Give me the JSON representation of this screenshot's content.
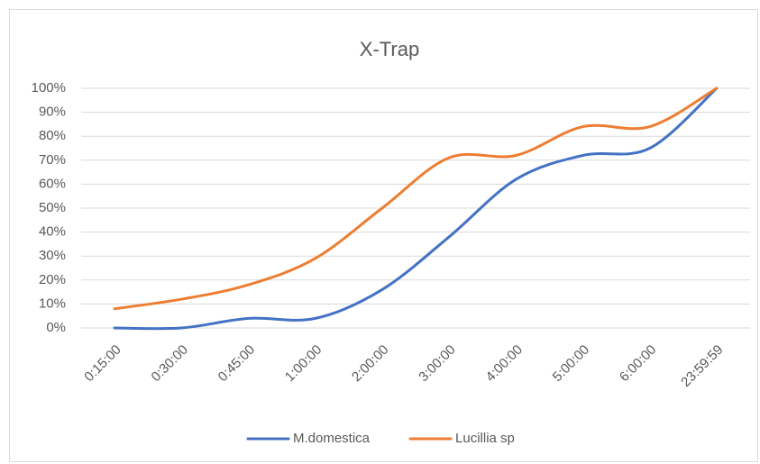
{
  "chart_data": {
    "type": "line",
    "title": "X-Trap",
    "categories": [
      "0:15:00",
      "0:30:00",
      "0:45:00",
      "1:00:00",
      "2:00:00",
      "3:00:00",
      "4:00:00",
      "5:00:00",
      "6:00:00",
      "23:59:59"
    ],
    "series": [
      {
        "name": "M.domestica",
        "color": "#4472c4",
        "values": [
          0,
          0,
          4,
          4,
          16,
          38,
          62,
          72,
          75,
          100
        ]
      },
      {
        "name": "Lucillia sp",
        "color": "#ed7d31",
        "values": [
          8,
          12,
          18,
          29,
          50,
          71,
          72,
          84,
          84,
          100
        ]
      }
    ],
    "ylim": [
      0,
      100
    ],
    "yticks": [
      {
        "value": 0,
        "label": "0%"
      },
      {
        "value": 10,
        "label": "10%"
      },
      {
        "value": 20,
        "label": "20%"
      },
      {
        "value": 30,
        "label": "30%"
      },
      {
        "value": 40,
        "label": "40%"
      },
      {
        "value": 50,
        "label": "50%"
      },
      {
        "value": 60,
        "label": "60%"
      },
      {
        "value": 70,
        "label": "70%"
      },
      {
        "value": 80,
        "label": "80%"
      },
      {
        "value": 90,
        "label": "90%"
      },
      {
        "value": 100,
        "label": "100%"
      }
    ],
    "grid": true,
    "smooth": true,
    "legend": "bottom"
  }
}
